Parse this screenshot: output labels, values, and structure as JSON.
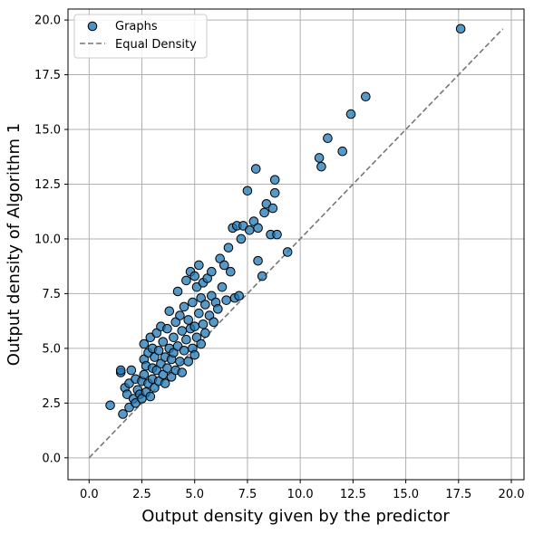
{
  "chart_data": {
    "type": "scatter",
    "title": "",
    "xlabel": "Output density given by the predictor",
    "ylabel": "Output density of Algorithm 1",
    "xlim": [
      -1.0,
      20.6
    ],
    "ylim": [
      -1.0,
      20.5
    ],
    "xticks": [
      0.0,
      2.5,
      5.0,
      7.5,
      10.0,
      12.5,
      15.0,
      17.5,
      20.0
    ],
    "xtick_labels": [
      "0.0",
      "2.5",
      "5.0",
      "7.5",
      "10.0",
      "12.5",
      "15.0",
      "17.5",
      "20.0"
    ],
    "yticks": [
      0.0,
      2.5,
      5.0,
      7.5,
      10.0,
      12.5,
      15.0,
      17.5,
      20.0
    ],
    "ytick_labels": [
      "0.0",
      "2.5",
      "5.0",
      "7.5",
      "10.0",
      "12.5",
      "15.0",
      "17.5",
      "20.0"
    ],
    "grid": true,
    "legend_position": "upper-left",
    "colors": {
      "points": "#1f77b4",
      "point_edge": "#000000",
      "reference_line": "#777777",
      "grid": "#b0b0b0"
    },
    "series": [
      {
        "name": "Graphs",
        "type": "scatter",
        "points": [
          [
            1.0,
            2.4
          ],
          [
            1.6,
            2.0
          ],
          [
            1.5,
            3.9
          ],
          [
            1.5,
            4.0
          ],
          [
            1.7,
            3.2
          ],
          [
            1.8,
            2.9
          ],
          [
            1.9,
            3.4
          ],
          [
            1.9,
            2.3
          ],
          [
            2.0,
            4.0
          ],
          [
            2.1,
            2.7
          ],
          [
            2.2,
            2.5
          ],
          [
            2.2,
            3.6
          ],
          [
            2.3,
            3.1
          ],
          [
            2.4,
            2.9
          ],
          [
            2.5,
            3.5
          ],
          [
            2.5,
            2.7
          ],
          [
            2.6,
            3.8
          ],
          [
            2.6,
            4.5
          ],
          [
            2.6,
            5.2
          ],
          [
            2.7,
            3.0
          ],
          [
            2.7,
            4.2
          ],
          [
            2.8,
            4.8
          ],
          [
            2.8,
            3.4
          ],
          [
            2.9,
            5.5
          ],
          [
            2.9,
            2.8
          ],
          [
            3.0,
            4.1
          ],
          [
            3.0,
            3.6
          ],
          [
            3.0,
            5.0
          ],
          [
            3.1,
            4.6
          ],
          [
            3.1,
            3.2
          ],
          [
            3.2,
            5.7
          ],
          [
            3.2,
            4.0
          ],
          [
            3.3,
            3.5
          ],
          [
            3.3,
            4.9
          ],
          [
            3.4,
            6.0
          ],
          [
            3.4,
            4.3
          ],
          [
            3.5,
            3.8
          ],
          [
            3.5,
            5.3
          ],
          [
            3.6,
            4.6
          ],
          [
            3.6,
            3.4
          ],
          [
            3.7,
            5.9
          ],
          [
            3.7,
            4.1
          ],
          [
            3.8,
            5.0
          ],
          [
            3.8,
            6.7
          ],
          [
            3.9,
            4.5
          ],
          [
            3.9,
            3.7
          ],
          [
            4.0,
            5.5
          ],
          [
            4.0,
            4.8
          ],
          [
            4.1,
            6.2
          ],
          [
            4.1,
            4.0
          ],
          [
            4.2,
            5.1
          ],
          [
            4.2,
            7.6
          ],
          [
            4.3,
            4.4
          ],
          [
            4.3,
            6.5
          ],
          [
            4.4,
            5.8
          ],
          [
            4.4,
            3.9
          ],
          [
            4.5,
            6.9
          ],
          [
            4.5,
            4.9
          ],
          [
            4.6,
            8.1
          ],
          [
            4.6,
            5.4
          ],
          [
            4.7,
            6.3
          ],
          [
            4.7,
            4.4
          ],
          [
            4.8,
            8.5
          ],
          [
            4.8,
            5.9
          ],
          [
            4.9,
            7.1
          ],
          [
            4.9,
            5.0
          ],
          [
            5.0,
            8.3
          ],
          [
            5.0,
            6.0
          ],
          [
            5.0,
            4.7
          ],
          [
            5.1,
            7.8
          ],
          [
            5.1,
            5.5
          ],
          [
            5.2,
            8.8
          ],
          [
            5.2,
            6.6
          ],
          [
            5.3,
            7.3
          ],
          [
            5.3,
            5.2
          ],
          [
            5.4,
            8.0
          ],
          [
            5.4,
            6.1
          ],
          [
            5.5,
            7.0
          ],
          [
            5.5,
            5.7
          ],
          [
            5.6,
            8.2
          ],
          [
            5.7,
            6.5
          ],
          [
            5.8,
            7.4
          ],
          [
            5.8,
            8.5
          ],
          [
            5.9,
            6.2
          ],
          [
            6.0,
            7.1
          ],
          [
            6.1,
            6.8
          ],
          [
            6.2,
            9.1
          ],
          [
            6.3,
            7.8
          ],
          [
            6.4,
            8.8
          ],
          [
            6.5,
            7.2
          ],
          [
            6.6,
            9.6
          ],
          [
            6.7,
            8.5
          ],
          [
            6.8,
            10.5
          ],
          [
            6.9,
            7.3
          ],
          [
            7.0,
            10.6
          ],
          [
            7.1,
            7.4
          ],
          [
            7.2,
            10.0
          ],
          [
            7.3,
            10.6
          ],
          [
            7.5,
            12.2
          ],
          [
            7.6,
            10.4
          ],
          [
            7.8,
            10.8
          ],
          [
            7.9,
            13.2
          ],
          [
            8.0,
            10.5
          ],
          [
            8.0,
            9.0
          ],
          [
            8.2,
            8.3
          ],
          [
            8.3,
            11.2
          ],
          [
            8.4,
            11.6
          ],
          [
            8.6,
            10.2
          ],
          [
            8.7,
            11.4
          ],
          [
            8.8,
            12.1
          ],
          [
            8.8,
            12.7
          ],
          [
            8.9,
            10.2
          ],
          [
            9.4,
            9.4
          ],
          [
            10.9,
            13.7
          ],
          [
            11.0,
            13.3
          ],
          [
            11.3,
            14.6
          ],
          [
            12.0,
            14.0
          ],
          [
            12.4,
            15.7
          ],
          [
            13.1,
            16.5
          ],
          [
            17.6,
            19.6
          ]
        ]
      }
    ],
    "reference_line": {
      "name": "Equal Density",
      "style": "dashed",
      "x": [
        0.0,
        19.6
      ],
      "y": [
        0.0,
        19.6
      ]
    }
  }
}
